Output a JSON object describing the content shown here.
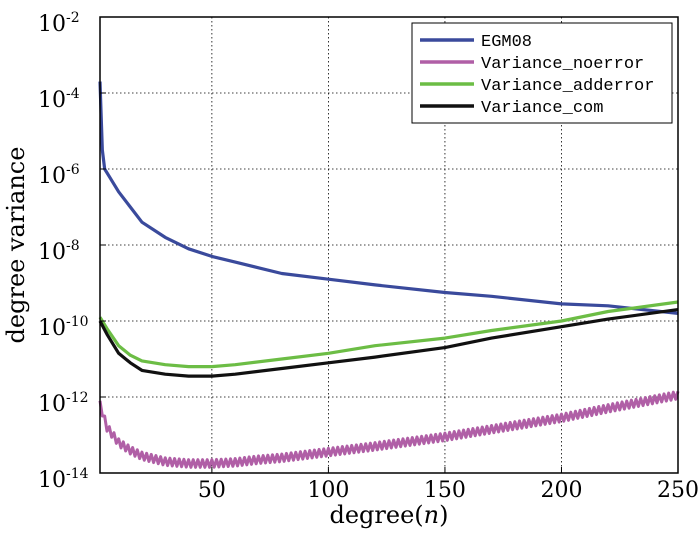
{
  "chart_data": {
    "type": "line",
    "title": "",
    "xlabel_prefix": "degree(",
    "xlabel_var": "n",
    "xlabel_suffix": ")",
    "ylabel": "degree variance",
    "y_scale": "log10",
    "xlim": [
      2,
      250
    ],
    "ylim_exponent": [
      -14,
      -2
    ],
    "grid": true,
    "x_ticks": [
      50,
      100,
      150,
      200,
      250
    ],
    "y_ticks": [
      {
        "base": "10",
        "exp": "-2"
      },
      {
        "base": "10",
        "exp": "-4"
      },
      {
        "base": "10",
        "exp": "-6"
      },
      {
        "base": "10",
        "exp": "-8"
      },
      {
        "base": "10",
        "exp": "-10"
      },
      {
        "base": "10",
        "exp": "-12"
      },
      {
        "base": "10",
        "exp": "-14"
      }
    ],
    "legend_position": "top-right",
    "series": [
      {
        "name": "EGM08",
        "color": "#3a4a9c",
        "x": [
          2,
          3,
          4,
          6,
          8,
          10,
          15,
          20,
          30,
          40,
          50,
          60,
          70,
          80,
          100,
          120,
          150,
          170,
          200,
          220,
          250
        ],
        "log10_y": [
          -3.7,
          -5.5,
          -6.0,
          -6.2,
          -6.4,
          -6.6,
          -7.0,
          -7.4,
          -7.8,
          -8.1,
          -8.3,
          -8.45,
          -8.6,
          -8.75,
          -8.9,
          -9.05,
          -9.25,
          -9.35,
          -9.55,
          -9.6,
          -9.8
        ]
      },
      {
        "name": "Variance_noerror",
        "color": "#b05fa6",
        "noise_band": 0.1,
        "x": [
          2,
          5,
          10,
          15,
          20,
          30,
          40,
          50,
          60,
          70,
          80,
          100,
          120,
          150,
          170,
          200,
          220,
          250
        ],
        "log10_y": [
          -12.2,
          -12.8,
          -13.2,
          -13.4,
          -13.55,
          -13.7,
          -13.75,
          -13.75,
          -13.72,
          -13.65,
          -13.6,
          -13.45,
          -13.3,
          -13.05,
          -12.85,
          -12.55,
          -12.3,
          -11.95
        ]
      },
      {
        "name": "Variance_adderror",
        "color": "#6cbd45",
        "x": [
          2,
          5,
          10,
          15,
          20,
          30,
          40,
          50,
          60,
          80,
          100,
          120,
          150,
          170,
          200,
          220,
          250
        ],
        "log10_y": [
          -9.9,
          -10.2,
          -10.65,
          -10.9,
          -11.05,
          -11.15,
          -11.2,
          -11.2,
          -11.15,
          -11.0,
          -10.85,
          -10.65,
          -10.45,
          -10.25,
          -10.0,
          -9.75,
          -9.5
        ]
      },
      {
        "name": "Variance_com",
        "color": "#111111",
        "x": [
          2,
          5,
          10,
          15,
          20,
          30,
          40,
          50,
          60,
          80,
          100,
          120,
          150,
          170,
          200,
          220,
          250
        ],
        "log10_y": [
          -10.0,
          -10.35,
          -10.85,
          -11.1,
          -11.3,
          -11.4,
          -11.45,
          -11.45,
          -11.4,
          -11.25,
          -11.1,
          -10.95,
          -10.7,
          -10.45,
          -10.15,
          -9.95,
          -9.7
        ]
      }
    ]
  }
}
